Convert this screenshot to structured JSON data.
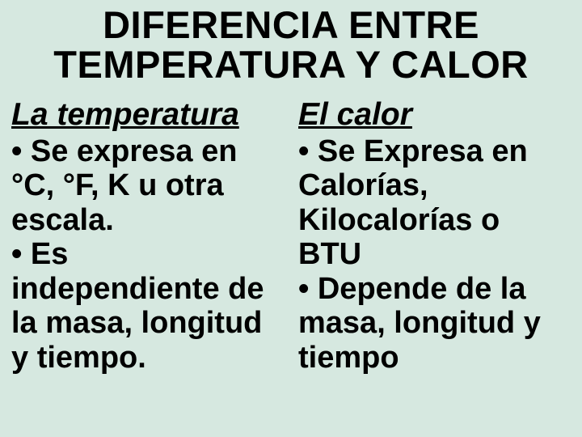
{
  "title": "DIFERENCIA ENTRE TEMPERATURA Y CALOR",
  "left": {
    "heading": "La temperatura",
    "bullet1": "• Se expresa en °C, °F, K u otra escala.",
    "bullet2": "• Es independiente de la masa, longitud y tiempo."
  },
  "right": {
    "heading": "El calor",
    "bullet1": "• Se Expresa en Calorías, Kilocalorías o BTU",
    "bullet2": "• Depende de la masa, longitud y tiempo"
  },
  "colors": {
    "background": "#d6e8e0",
    "text": "#000000"
  },
  "typography": {
    "title_fontsize": 47,
    "heading_fontsize": 39,
    "body_fontsize": 38,
    "font_family": "Arial",
    "weight": 900
  }
}
